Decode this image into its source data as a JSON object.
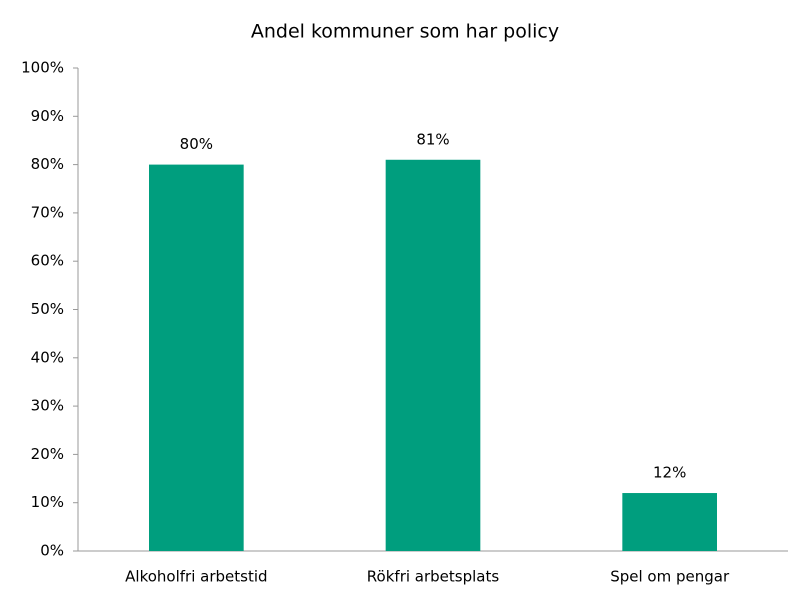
{
  "chart_data": {
    "type": "bar",
    "title": "Andel kommuner som har policy",
    "categories": [
      "Alkoholfri arbetstid",
      "Rökfri arbetsplats",
      "Spel om pengar"
    ],
    "values": [
      80,
      81,
      12
    ],
    "value_labels": [
      "80%",
      "81%",
      "12%"
    ],
    "color": "#009e7e",
    "ylim": [
      0,
      100
    ],
    "yticks": [
      {
        "value": 0,
        "label": "0%"
      },
      {
        "value": 10,
        "label": "10%"
      },
      {
        "value": 20,
        "label": "20%"
      },
      {
        "value": 30,
        "label": "30%"
      },
      {
        "value": 40,
        "label": "40%"
      },
      {
        "value": 50,
        "label": "50%"
      },
      {
        "value": 60,
        "label": "60%"
      },
      {
        "value": 70,
        "label": "70%"
      },
      {
        "value": 80,
        "label": "80%"
      },
      {
        "value": 90,
        "label": "90%"
      },
      {
        "value": 100,
        "label": "100%"
      }
    ],
    "grid": false
  }
}
